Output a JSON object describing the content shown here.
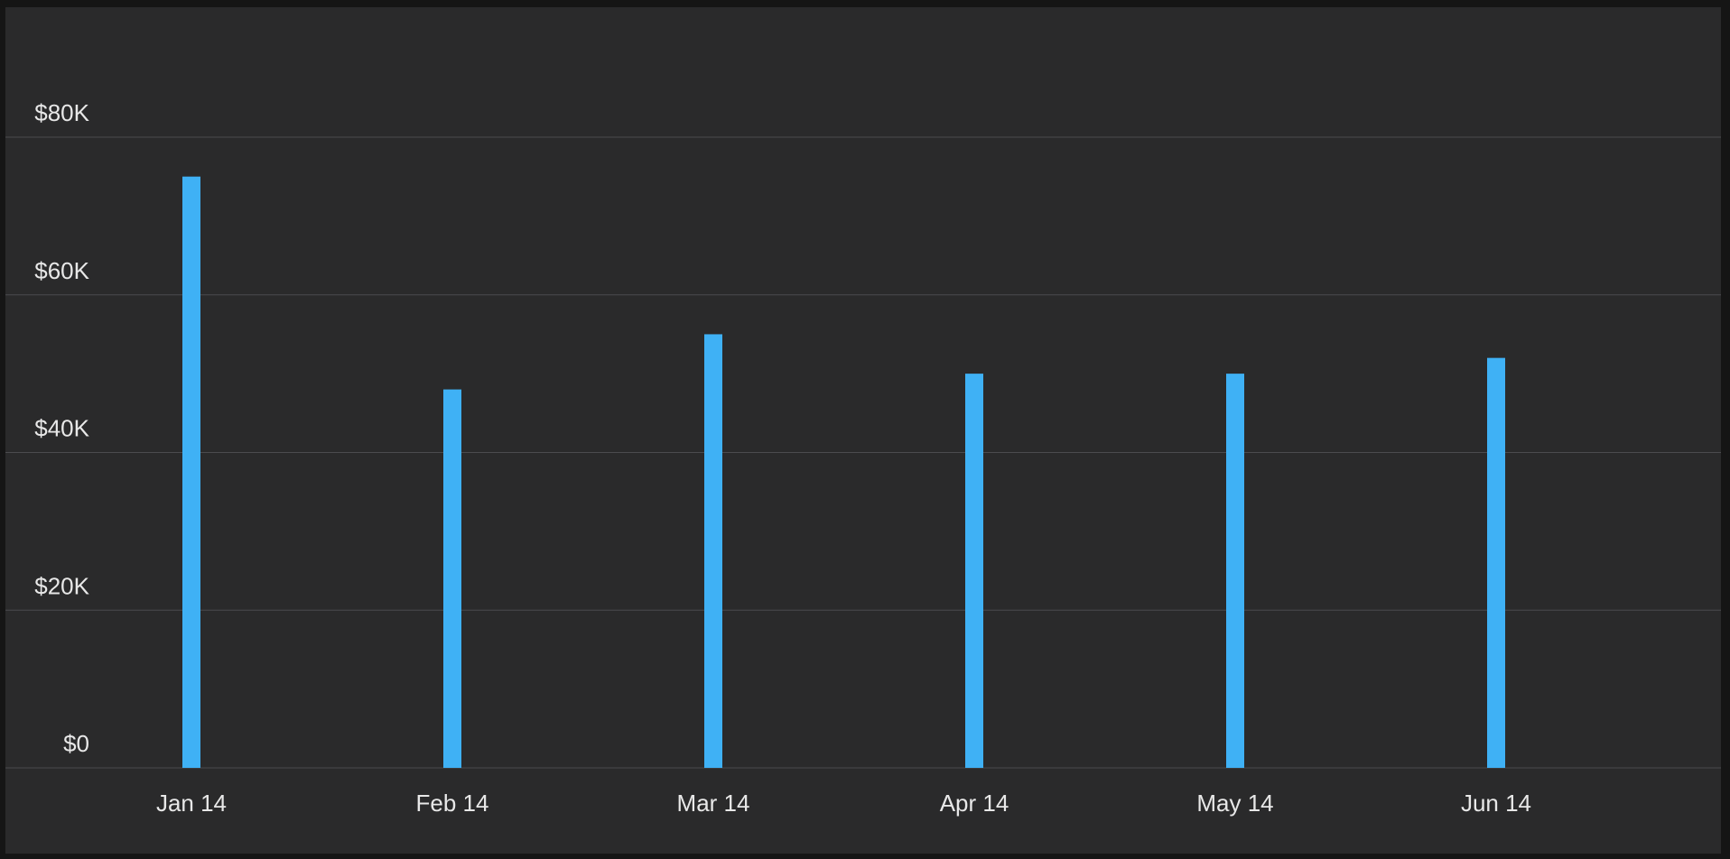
{
  "colors": {
    "background": "#2a2a2b",
    "grid": "#4b4b4e",
    "bar": "#3fb1f5",
    "text": "#e8e8e8"
  },
  "chart_data": {
    "type": "bar",
    "title": "",
    "xlabel": "",
    "ylabel": "",
    "categories": [
      "Jan 14",
      "Feb 14",
      "Mar 14",
      "Apr 14",
      "May 14",
      "Jun 14"
    ],
    "series": [
      {
        "values": [
          75000,
          48000,
          55000,
          50000,
          50000,
          52000
        ]
      }
    ],
    "ylim": [
      0,
      80000
    ],
    "y_ticks": [
      0,
      20000,
      40000,
      60000,
      80000
    ],
    "y_tick_labels": [
      "$0",
      "$20K",
      "$40K",
      "$60K",
      "$80K"
    ],
    "grid": true,
    "legend": "none"
  }
}
